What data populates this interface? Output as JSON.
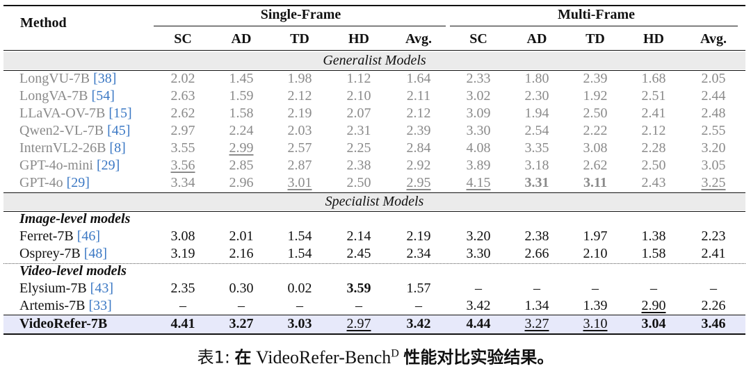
{
  "header": {
    "method": "Method",
    "group_single": "Single-Frame",
    "group_multi": "Multi-Frame",
    "columns": [
      "SC",
      "AD",
      "TD",
      "HD",
      "Avg.",
      "SC",
      "AD",
      "TD",
      "HD",
      "Avg."
    ]
  },
  "sections": {
    "generalist": "Generalist Models",
    "specialist": "Specialist Models",
    "image_level": "Image-level models",
    "video_level": "Video-level models"
  },
  "generalist_rows": [
    {
      "name": "LongVU-7B ",
      "ref": "[38]",
      "values": [
        "2.02",
        "1.45",
        "1.98",
        "1.12",
        "1.64",
        "2.33",
        "1.80",
        "2.39",
        "1.68",
        "2.05"
      ]
    },
    {
      "name": "LongVA-7B ",
      "ref": "[54]",
      "values": [
        "2.63",
        "1.59",
        "2.12",
        "2.10",
        "2.11",
        "3.02",
        "2.30",
        "1.92",
        "2.51",
        "2.44"
      ]
    },
    {
      "name": "LLaVA-OV-7B ",
      "ref": "[15]",
      "values": [
        "2.62",
        "1.58",
        "2.19",
        "2.07",
        "2.12",
        "3.09",
        "1.94",
        "2.50",
        "2.41",
        "2.48"
      ]
    },
    {
      "name": "Qwen2-VL-7B ",
      "ref": "[45]",
      "values": [
        "2.97",
        "2.24",
        "2.03",
        "2.31",
        "2.39",
        "3.30",
        "2.54",
        "2.22",
        "2.12",
        "2.55"
      ]
    },
    {
      "name": "InternVL2-26B ",
      "ref": "[8]",
      "values": [
        "3.55",
        "2.99",
        "2.57",
        "2.25",
        "2.84",
        "4.08",
        "3.35",
        "3.08",
        "2.28",
        "3.20"
      ]
    },
    {
      "name": "GPT-4o-mini ",
      "ref": "[29]",
      "values": [
        "3.56",
        "2.85",
        "2.87",
        "2.38",
        "2.92",
        "3.89",
        "3.18",
        "2.62",
        "2.50",
        "3.05"
      ]
    },
    {
      "name": "GPT-4o ",
      "ref": "[29]",
      "values": [
        "3.34",
        "2.96",
        "3.01",
        "2.50",
        "2.95",
        "4.15",
        "3.31",
        "3.11",
        "2.43",
        "3.25"
      ]
    }
  ],
  "image_rows": [
    {
      "name": "Ferret-7B ",
      "ref": "[46]",
      "values": [
        "3.08",
        "2.01",
        "1.54",
        "2.14",
        "2.19",
        "3.20",
        "2.38",
        "1.97",
        "1.38",
        "2.23"
      ]
    },
    {
      "name": "Osprey-7B ",
      "ref": "[48]",
      "values": [
        "3.19",
        "2.16",
        "1.54",
        "2.45",
        "2.34",
        "3.30",
        "2.66",
        "2.10",
        "1.58",
        "2.41"
      ]
    }
  ],
  "video_rows": [
    {
      "name": "Elysium-7B ",
      "ref": "[43]",
      "values": [
        "2.35",
        "0.30",
        "0.02",
        "3.59",
        "1.57",
        "–",
        "–",
        "–",
        "–",
        "–"
      ]
    },
    {
      "name": "Artemis-7B ",
      "ref": "[33]",
      "values": [
        "–",
        "–",
        "–",
        "–",
        "–",
        "3.42",
        "1.34",
        "1.39",
        "2.90",
        "2.26"
      ]
    }
  ],
  "final_row": {
    "name": "VideoRefer-7B",
    "values": [
      "4.41",
      "3.27",
      "3.03",
      "2.97",
      "3.42",
      "4.44",
      "3.27",
      "3.10",
      "3.04",
      "3.46"
    ]
  },
  "caption": {
    "label": "表1:",
    "prefix": "在",
    "bench": "VideoRefer-Bench",
    "sup": "D",
    "suffix": "性能对比实验结果。"
  }
}
